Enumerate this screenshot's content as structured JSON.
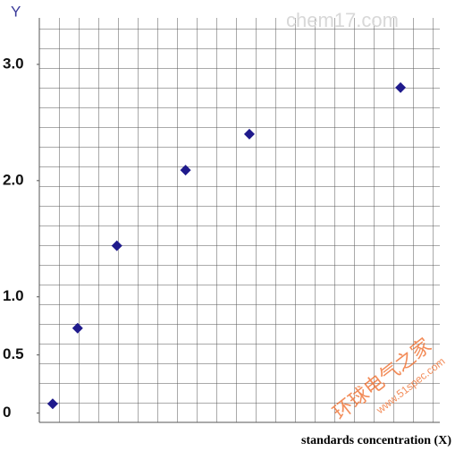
{
  "chart_data": {
    "type": "scatter",
    "y_label": "Y",
    "x_label": "standards concentration (X)",
    "x": [
      0.68,
      1.95,
      3.95,
      7.45,
      10.7,
      18.4
    ],
    "values": [
      0.08,
      0.73,
      1.44,
      2.09,
      2.4,
      2.8
    ],
    "color": "#1f1a8c",
    "xlim": [
      0,
      20.4
    ],
    "ylim": [
      -0.08,
      3.4
    ],
    "yticks": [
      0,
      0.5,
      {
        "value": 1,
        "label": "1.0"
      },
      {
        "value": 2,
        "label": "2.0"
      },
      {
        "value": 3,
        "label": "3.0"
      }
    ]
  },
  "watermarks": [
    "chem17.com",
    "环球电气之家",
    "www.51spec.com"
  ]
}
